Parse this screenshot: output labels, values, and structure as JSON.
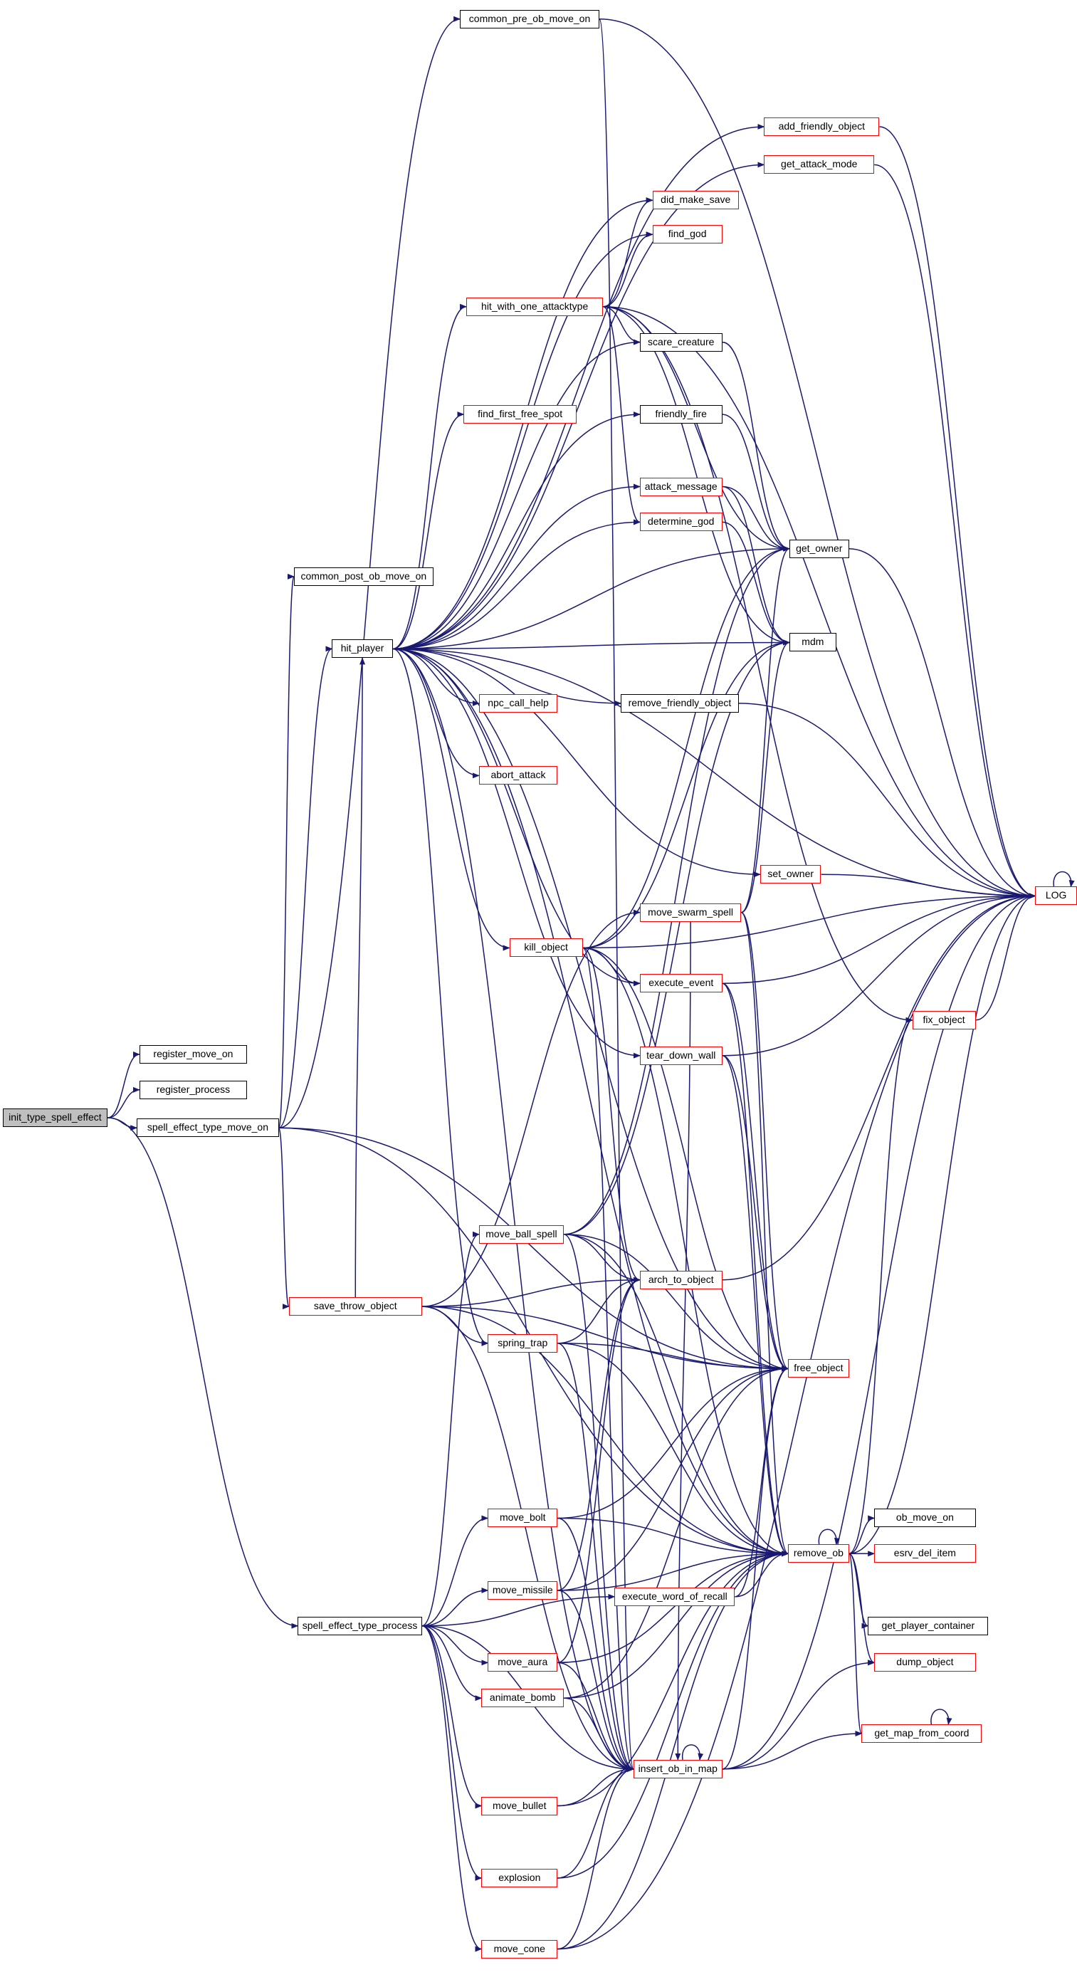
{
  "diagram": {
    "type": "call-graph",
    "root": "init_type_spell_effect",
    "colors": {
      "edge": "#191970",
      "linked_border": "#ff0000",
      "plain_border": "#000000",
      "root_fill": "#bfbfbf"
    },
    "nodes": [
      {
        "id": "common_pre_ob_move_on",
        "label": "common_pre_ob_move_on",
        "style": "plain"
      },
      {
        "id": "add_friendly_object",
        "label": "add_friendly_object",
        "style": "red"
      },
      {
        "id": "get_attack_mode",
        "label": "get_attack_mode",
        "style": "red"
      },
      {
        "id": "did_make_save",
        "label": "did_make_save",
        "style": "red"
      },
      {
        "id": "find_god",
        "label": "find_god",
        "style": "red"
      },
      {
        "id": "hit_with_one_attacktype",
        "label": "hit_with_one_attacktype",
        "style": "red"
      },
      {
        "id": "scare_creature",
        "label": "scare_creature",
        "style": "plain"
      },
      {
        "id": "friendly_fire",
        "label": "friendly_fire",
        "style": "plain"
      },
      {
        "id": "find_first_free_spot",
        "label": "find_first_free_spot",
        "style": "red"
      },
      {
        "id": "attack_message",
        "label": "attack_message",
        "style": "red"
      },
      {
        "id": "determine_god",
        "label": "determine_god",
        "style": "red"
      },
      {
        "id": "get_owner",
        "label": "get_owner",
        "style": "plain"
      },
      {
        "id": "common_post_ob_move_on",
        "label": "common_post_ob_move_on",
        "style": "plain"
      },
      {
        "id": "hit_player",
        "label": "hit_player",
        "style": "plain"
      },
      {
        "id": "mdm",
        "label": "mdm",
        "style": "plain"
      },
      {
        "id": "npc_call_help",
        "label": "npc_call_help",
        "style": "red"
      },
      {
        "id": "remove_friendly_object",
        "label": "remove_friendly_object",
        "style": "plain"
      },
      {
        "id": "abort_attack",
        "label": "abort_attack",
        "style": "red"
      },
      {
        "id": "set_owner",
        "label": "set_owner",
        "style": "red"
      },
      {
        "id": "LOG",
        "label": "LOG",
        "style": "red"
      },
      {
        "id": "move_swarm_spell",
        "label": "move_swarm_spell",
        "style": "red"
      },
      {
        "id": "kill_object",
        "label": "kill_object",
        "style": "red"
      },
      {
        "id": "execute_event",
        "label": "execute_event",
        "style": "red"
      },
      {
        "id": "fix_object",
        "label": "fix_object",
        "style": "red"
      },
      {
        "id": "tear_down_wall",
        "label": "tear_down_wall",
        "style": "red"
      },
      {
        "id": "register_move_on",
        "label": "register_move_on",
        "style": "plain"
      },
      {
        "id": "register_process",
        "label": "register_process",
        "style": "plain"
      },
      {
        "id": "init_type_spell_effect",
        "label": "init_type_spell_effect",
        "style": "root"
      },
      {
        "id": "spell_effect_type_move_on",
        "label": "spell_effect_type_move_on",
        "style": "plain"
      },
      {
        "id": "move_ball_spell",
        "label": "move_ball_spell",
        "style": "red"
      },
      {
        "id": "arch_to_object",
        "label": "arch_to_object",
        "style": "red"
      },
      {
        "id": "save_throw_object",
        "label": "save_throw_object",
        "style": "red"
      },
      {
        "id": "spring_trap",
        "label": "spring_trap",
        "style": "red"
      },
      {
        "id": "free_object",
        "label": "free_object",
        "style": "red"
      },
      {
        "id": "move_bolt",
        "label": "move_bolt",
        "style": "red"
      },
      {
        "id": "ob_move_on",
        "label": "ob_move_on",
        "style": "plain"
      },
      {
        "id": "remove_ob",
        "label": "remove_ob",
        "style": "red"
      },
      {
        "id": "esrv_del_item",
        "label": "esrv_del_item",
        "style": "red"
      },
      {
        "id": "move_missile",
        "label": "move_missile",
        "style": "red"
      },
      {
        "id": "execute_word_of_recall",
        "label": "execute_word_of_recall",
        "style": "red"
      },
      {
        "id": "get_player_container",
        "label": "get_player_container",
        "style": "plain"
      },
      {
        "id": "spell_effect_type_process",
        "label": "spell_effect_type_process",
        "style": "plain"
      },
      {
        "id": "move_aura",
        "label": "move_aura",
        "style": "red"
      },
      {
        "id": "dump_object",
        "label": "dump_object",
        "style": "red"
      },
      {
        "id": "animate_bomb",
        "label": "animate_bomb",
        "style": "red"
      },
      {
        "id": "get_map_from_coord",
        "label": "get_map_from_coord",
        "style": "red"
      },
      {
        "id": "insert_ob_in_map",
        "label": "insert_ob_in_map",
        "style": "red"
      },
      {
        "id": "move_bullet",
        "label": "move_bullet",
        "style": "red"
      },
      {
        "id": "explosion",
        "label": "explosion",
        "style": "red"
      },
      {
        "id": "move_cone",
        "label": "move_cone",
        "style": "red"
      }
    ],
    "edges": [
      [
        "init_type_spell_effect",
        "register_move_on"
      ],
      [
        "init_type_spell_effect",
        "register_process"
      ],
      [
        "init_type_spell_effect",
        "spell_effect_type_move_on"
      ],
      [
        "init_type_spell_effect",
        "spell_effect_type_process"
      ],
      [
        "spell_effect_type_move_on",
        "common_post_ob_move_on"
      ],
      [
        "spell_effect_type_move_on",
        "common_pre_ob_move_on"
      ],
      [
        "spell_effect_type_move_on",
        "hit_player"
      ],
      [
        "spell_effect_type_move_on",
        "save_throw_object"
      ],
      [
        "spell_effect_type_move_on",
        "remove_ob"
      ],
      [
        "spell_effect_type_move_on",
        "free_object"
      ],
      [
        "common_pre_ob_move_on",
        "LOG"
      ],
      [
        "common_pre_ob_move_on",
        "insert_ob_in_map"
      ],
      [
        "hit_player",
        "add_friendly_object"
      ],
      [
        "hit_player",
        "get_attack_mode"
      ],
      [
        "hit_player",
        "did_make_save"
      ],
      [
        "hit_player",
        "find_god"
      ],
      [
        "hit_player",
        "hit_with_one_attacktype"
      ],
      [
        "hit_player",
        "scare_creature"
      ],
      [
        "hit_player",
        "friendly_fire"
      ],
      [
        "hit_player",
        "find_first_free_spot"
      ],
      [
        "hit_player",
        "attack_message"
      ],
      [
        "hit_player",
        "determine_god"
      ],
      [
        "hit_player",
        "get_owner"
      ],
      [
        "hit_player",
        "mdm"
      ],
      [
        "hit_player",
        "npc_call_help"
      ],
      [
        "hit_player",
        "remove_friendly_object"
      ],
      [
        "hit_player",
        "abort_attack"
      ],
      [
        "hit_player",
        "set_owner"
      ],
      [
        "hit_player",
        "kill_object"
      ],
      [
        "hit_player",
        "execute_event"
      ],
      [
        "hit_player",
        "tear_down_wall"
      ],
      [
        "hit_player",
        "spring_trap"
      ],
      [
        "hit_player",
        "remove_ob"
      ],
      [
        "hit_player",
        "free_object"
      ],
      [
        "hit_player",
        "LOG"
      ],
      [
        "hit_player",
        "insert_ob_in_map"
      ],
      [
        "hit_with_one_attacktype",
        "did_make_save"
      ],
      [
        "hit_with_one_attacktype",
        "find_god"
      ],
      [
        "hit_with_one_attacktype",
        "scare_creature"
      ],
      [
        "hit_with_one_attacktype",
        "get_owner"
      ],
      [
        "hit_with_one_attacktype",
        "mdm"
      ],
      [
        "hit_with_one_attacktype",
        "determine_god"
      ],
      [
        "hit_with_one_attacktype",
        "LOG"
      ],
      [
        "hit_with_one_attacktype",
        "fix_object"
      ],
      [
        "scare_creature",
        "get_owner"
      ],
      [
        "friendly_fire",
        "get_owner"
      ],
      [
        "attack_message",
        "get_owner"
      ],
      [
        "attack_message",
        "mdm"
      ],
      [
        "determine_god",
        "mdm"
      ],
      [
        "get_owner",
        "LOG"
      ],
      [
        "add_friendly_object",
        "LOG"
      ],
      [
        "get_attack_mode",
        "LOG"
      ],
      [
        "remove_friendly_object",
        "LOG"
      ],
      [
        "set_owner",
        "LOG"
      ],
      [
        "LOG",
        "LOG"
      ],
      [
        "move_swarm_spell",
        "get_owner"
      ],
      [
        "move_swarm_spell",
        "mdm"
      ],
      [
        "move_swarm_spell",
        "free_object"
      ],
      [
        "move_swarm_spell",
        "remove_ob"
      ],
      [
        "move_swarm_spell",
        "insert_ob_in_map"
      ],
      [
        "kill_object",
        "get_owner"
      ],
      [
        "kill_object",
        "mdm"
      ],
      [
        "kill_object",
        "execute_event"
      ],
      [
        "kill_object",
        "LOG"
      ],
      [
        "kill_object",
        "free_object"
      ],
      [
        "kill_object",
        "remove_ob"
      ],
      [
        "kill_object",
        "insert_ob_in_map"
      ],
      [
        "kill_object",
        "arch_to_object"
      ],
      [
        "execute_event",
        "LOG"
      ],
      [
        "execute_event",
        "free_object"
      ],
      [
        "execute_event",
        "remove_ob"
      ],
      [
        "fix_object",
        "LOG"
      ],
      [
        "tear_down_wall",
        "LOG"
      ],
      [
        "tear_down_wall",
        "free_object"
      ],
      [
        "tear_down_wall",
        "remove_ob"
      ],
      [
        "move_ball_spell",
        "get_owner"
      ],
      [
        "move_ball_spell",
        "mdm"
      ],
      [
        "move_ball_spell",
        "arch_to_object"
      ],
      [
        "move_ball_spell",
        "free_object"
      ],
      [
        "move_ball_spell",
        "remove_ob"
      ],
      [
        "move_ball_spell",
        "insert_ob_in_map"
      ],
      [
        "arch_to_object",
        "LOG"
      ],
      [
        "save_throw_object",
        "hit_player"
      ],
      [
        "save_throw_object",
        "move_swarm_spell"
      ],
      [
        "save_throw_object",
        "arch_to_object"
      ],
      [
        "save_throw_object",
        "free_object"
      ],
      [
        "save_throw_object",
        "spring_trap"
      ],
      [
        "save_throw_object",
        "remove_ob"
      ],
      [
        "save_throw_object",
        "insert_ob_in_map"
      ],
      [
        "spring_trap",
        "arch_to_object"
      ],
      [
        "spring_trap",
        "free_object"
      ],
      [
        "spring_trap",
        "remove_ob"
      ],
      [
        "spring_trap",
        "insert_ob_in_map"
      ],
      [
        "remove_ob",
        "fix_object"
      ],
      [
        "remove_ob",
        "ob_move_on"
      ],
      [
        "remove_ob",
        "esrv_del_item"
      ],
      [
        "remove_ob",
        "get_player_container"
      ],
      [
        "remove_ob",
        "dump_object"
      ],
      [
        "remove_ob",
        "get_map_from_coord"
      ],
      [
        "remove_ob",
        "LOG"
      ],
      [
        "remove_ob",
        "remove_ob"
      ],
      [
        "move_bolt",
        "free_object"
      ],
      [
        "move_bolt",
        "remove_ob"
      ],
      [
        "move_bolt",
        "insert_ob_in_map"
      ],
      [
        "move_missile",
        "free_object"
      ],
      [
        "move_missile",
        "remove_ob"
      ],
      [
        "move_missile",
        "insert_ob_in_map"
      ],
      [
        "move_missile",
        "arch_to_object"
      ],
      [
        "execute_word_of_recall",
        "free_object"
      ],
      [
        "execute_word_of_recall",
        "remove_ob"
      ],
      [
        "spell_effect_type_process",
        "move_ball_spell"
      ],
      [
        "spell_effect_type_process",
        "move_bolt"
      ],
      [
        "spell_effect_type_process",
        "move_missile"
      ],
      [
        "spell_effect_type_process",
        "move_aura"
      ],
      [
        "spell_effect_type_process",
        "animate_bomb"
      ],
      [
        "spell_effect_type_process",
        "move_bullet"
      ],
      [
        "spell_effect_type_process",
        "explosion"
      ],
      [
        "spell_effect_type_process",
        "move_cone"
      ],
      [
        "spell_effect_type_process",
        "execute_word_of_recall"
      ],
      [
        "spell_effect_type_process",
        "insert_ob_in_map"
      ],
      [
        "move_aura",
        "arch_to_object"
      ],
      [
        "move_aura",
        "remove_ob"
      ],
      [
        "move_aura",
        "insert_ob_in_map"
      ],
      [
        "animate_bomb",
        "free_object"
      ],
      [
        "animate_bomb",
        "remove_ob"
      ],
      [
        "animate_bomb",
        "insert_ob_in_map"
      ],
      [
        "insert_ob_in_map",
        "LOG"
      ],
      [
        "insert_ob_in_map",
        "get_map_from_coord"
      ],
      [
        "insert_ob_in_map",
        "dump_object"
      ],
      [
        "insert_ob_in_map",
        "insert_ob_in_map"
      ],
      [
        "insert_ob_in_map",
        "free_object"
      ],
      [
        "get_map_from_coord",
        "get_map_from_coord"
      ],
      [
        "move_bullet",
        "insert_ob_in_map"
      ],
      [
        "move_bullet",
        "remove_ob"
      ],
      [
        "explosion",
        "insert_ob_in_map"
      ],
      [
        "explosion",
        "remove_ob"
      ],
      [
        "move_cone",
        "insert_ob_in_map"
      ],
      [
        "move_cone",
        "remove_ob"
      ],
      [
        "move_cone",
        "LOG"
      ]
    ]
  }
}
